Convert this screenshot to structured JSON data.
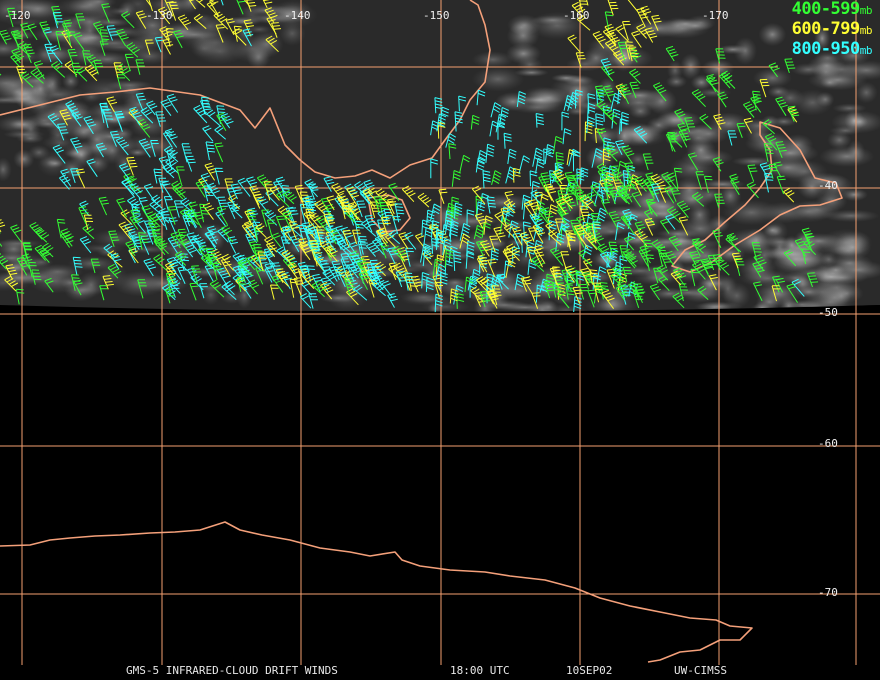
{
  "map": {
    "lon_labels": [
      "-120",
      "-130",
      "-140",
      "-150",
      "-160",
      "-170"
    ],
    "lat_labels": [
      "-40",
      "-50",
      "-60",
      "-70"
    ],
    "colors": {
      "grid": "#f4a070",
      "coast": "#f4a07a",
      "background": "#000000",
      "cloud": "#9a9a9a"
    }
  },
  "legend": [
    {
      "range": "400-599",
      "unit": "mb",
      "color": "#33ff33"
    },
    {
      "range": "600-799",
      "unit": "mb",
      "color": "#ffff33"
    },
    {
      "range": "800-950",
      "unit": "mb",
      "color": "#33ffff"
    }
  ],
  "footer": {
    "product": "GMS-5 INFRARED-CLOUD DRIFT WINDS",
    "time": "18:00 UTC",
    "date": "10SEP02",
    "source": "UW-CIMSS"
  }
}
